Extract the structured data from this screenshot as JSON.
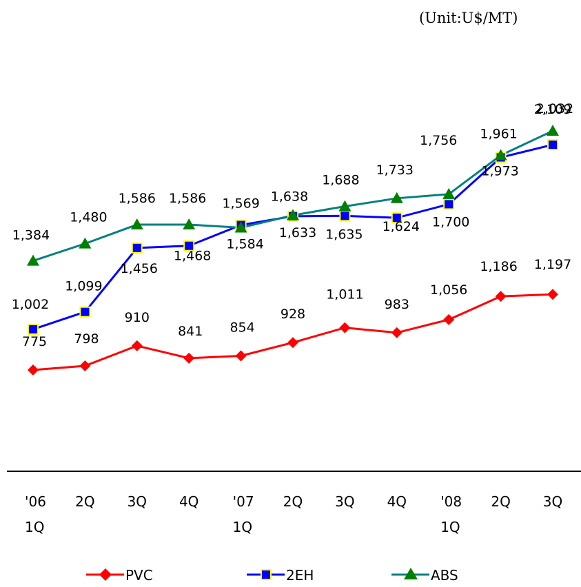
{
  "chart_data": {
    "type": "line",
    "unit_label": "(Unit:U$/MT)",
    "categories": [
      [
        "'06",
        "1Q"
      ],
      [
        "2Q"
      ],
      [
        "3Q"
      ],
      [
        "4Q"
      ],
      [
        "'07",
        "1Q"
      ],
      [
        "2Q"
      ],
      [
        "3Q"
      ],
      [
        "4Q"
      ],
      [
        "'08",
        "1Q"
      ],
      [
        "2Q"
      ],
      [
        "3Q"
      ]
    ],
    "series": [
      {
        "name": "PVC",
        "color": "#ff0000",
        "marker": "diamond",
        "marker_fill": "#ff0000",
        "values": [
          775,
          798,
          910,
          841,
          854,
          928,
          1011,
          983,
          1056,
          1186,
          1197
        ],
        "labels": [
          "775",
          "798",
          "910",
          "841",
          "854",
          "928",
          "1,011",
          "983",
          "1,056",
          "1,186",
          "1,197"
        ]
      },
      {
        "name": "2EH",
        "color": "#0000ff",
        "marker": "square",
        "marker_fill": "#0000ff",
        "marker_stroke": "#ffff00",
        "values": [
          1002,
          1099,
          1456,
          1468,
          1584,
          1633,
          1635,
          1624,
          1700,
          1961,
          2032
        ],
        "labels": [
          "1,002",
          "1,099",
          "1,456",
          "1,468",
          "1,584",
          "1,633",
          "1,635",
          "1,624",
          "1,700",
          "1,961",
          "2,032"
        ]
      },
      {
        "name": "ABS",
        "color": "#008080",
        "marker": "triangle",
        "marker_fill": "#008000",
        "values": [
          1384,
          1480,
          1586,
          1586,
          1569,
          1638,
          1688,
          1733,
          1756,
          1973,
          2109
        ],
        "labels": [
          "1,384",
          "1,480",
          "1,586",
          "1,586",
          "1,569",
          "1,638",
          "1,688",
          "1,733",
          "1,756",
          "1,973",
          "2,109"
        ]
      }
    ],
    "legend_position": "bottom",
    "grid": false
  }
}
